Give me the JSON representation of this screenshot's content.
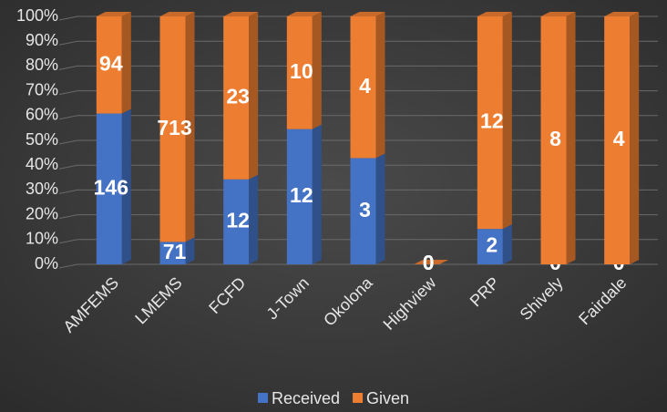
{
  "chart_data": {
    "type": "stacked_bar_100",
    "categories": [
      "AMFEMS",
      "LMEMS",
      "FCFD",
      "J-Town",
      "Okolona",
      "Highview",
      "PRP",
      "Shively",
      "Fairdale"
    ],
    "series": [
      {
        "name": "Received",
        "color": "#4472c4",
        "values": [
          146,
          71,
          12,
          12,
          3,
          0,
          2,
          0,
          0
        ]
      },
      {
        "name": "Given",
        "color": "#ed7d31",
        "values": [
          94,
          713,
          23,
          10,
          4,
          0,
          12,
          8,
          4
        ]
      }
    ],
    "ylim": [
      0,
      100
    ],
    "yticks": [
      {
        "value": 0,
        "label": "0%"
      },
      {
        "value": 10,
        "label": "10%"
      },
      {
        "value": 20,
        "label": "20%"
      },
      {
        "value": 30,
        "label": "30%"
      },
      {
        "value": 40,
        "label": "40%"
      },
      {
        "value": 50,
        "label": "50%"
      },
      {
        "value": 60,
        "label": "60%"
      },
      {
        "value": 70,
        "label": "70%"
      },
      {
        "value": 80,
        "label": "80%"
      },
      {
        "value": 90,
        "label": "90%"
      },
      {
        "value": 100,
        "label": "100%"
      }
    ],
    "grid": true,
    "legend": "bottom"
  }
}
